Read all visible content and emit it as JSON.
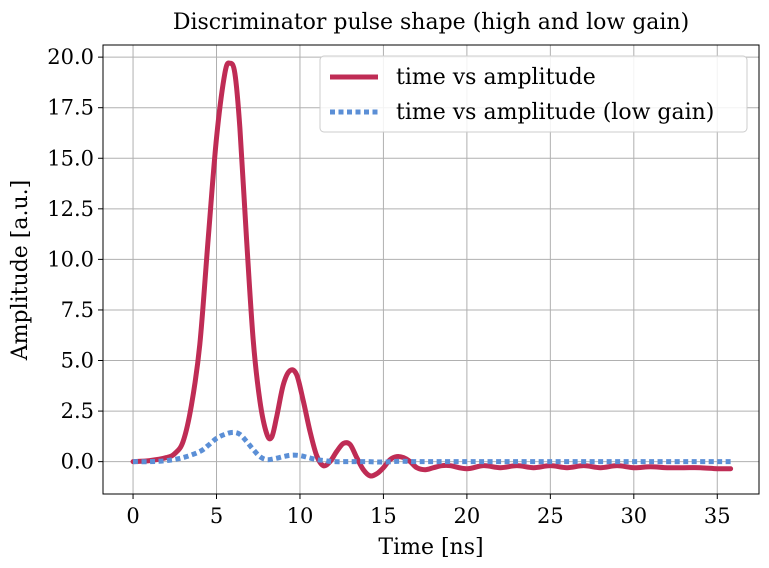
{
  "chart_data": {
    "type": "line",
    "title": "Discriminator pulse shape (high and low gain)",
    "xlabel": "Time [ns]",
    "ylabel": "Amplitude [a.u.]",
    "xlim": [
      -1.8,
      37.5
    ],
    "ylim": [
      -1.6,
      20.6
    ],
    "xticks": [
      0,
      5,
      10,
      15,
      20,
      25,
      30,
      35
    ],
    "xtick_labels": [
      "0",
      "5",
      "10",
      "15",
      "20",
      "25",
      "30",
      "35"
    ],
    "yticks": [
      0.0,
      2.5,
      5.0,
      7.5,
      10.0,
      12.5,
      15.0,
      17.5,
      20.0
    ],
    "ytick_labels": [
      "0.0",
      "2.5",
      "5.0",
      "7.5",
      "10.0",
      "12.5",
      "15.0",
      "17.5",
      "20.0"
    ],
    "grid": true,
    "legend_position": "top-right",
    "series": [
      {
        "name": "time vs amplitude",
        "color": "#bf2c55",
        "style": "solid",
        "x": [
          0,
          1,
          2,
          2.5,
          3,
          3.5,
          4,
          4.5,
          5,
          5.5,
          5.8,
          6.1,
          6.4,
          6.8,
          7.2,
          7.6,
          8.0,
          8.3,
          8.6,
          9.0,
          9.4,
          9.8,
          10.2,
          10.6,
          11.0,
          11.4,
          11.8,
          12.2,
          12.6,
          13.0,
          13.4,
          13.8,
          14.2,
          14.6,
          15.0,
          15.4,
          15.8,
          16.2,
          16.6,
          17.0,
          17.5,
          18.0,
          18.5,
          19.0,
          20.0,
          21.0,
          22.0,
          23.0,
          24.0,
          25.0,
          26.0,
          27.0,
          28.0,
          29.0,
          30.0,
          31.0,
          32.0,
          33.0,
          34.0,
          35.0,
          35.8
        ],
        "y": [
          0.0,
          0.05,
          0.2,
          0.4,
          1.0,
          2.8,
          5.8,
          11.0,
          16.0,
          19.2,
          19.7,
          19.2,
          16.5,
          11.0,
          6.0,
          3.0,
          1.4,
          1.2,
          2.2,
          3.8,
          4.5,
          4.3,
          3.0,
          1.5,
          0.3,
          -0.2,
          0.0,
          0.5,
          0.9,
          0.85,
          0.2,
          -0.4,
          -0.7,
          -0.6,
          -0.3,
          0.1,
          0.25,
          0.2,
          0.0,
          -0.3,
          -0.4,
          -0.3,
          -0.2,
          -0.2,
          -0.35,
          -0.2,
          -0.3,
          -0.2,
          -0.3,
          -0.2,
          -0.3,
          -0.2,
          -0.3,
          -0.2,
          -0.3,
          -0.25,
          -0.3,
          -0.3,
          -0.3,
          -0.35,
          -0.35
        ]
      },
      {
        "name": "time vs amplitude (low gain)",
        "color": "#5b8fd6",
        "style": "dotted",
        "x": [
          0,
          1,
          2,
          3,
          4,
          4.5,
          5,
          5.5,
          6,
          6.4,
          6.8,
          7.2,
          7.6,
          8.0,
          8.5,
          9.0,
          9.5,
          10.0,
          10.5,
          11.0,
          11.5,
          12.0,
          13.0,
          14.0,
          15.0,
          16.0,
          17.0,
          18.0,
          20.0,
          22.0,
          25.0,
          28.0,
          31.0,
          34.0,
          35.8
        ],
        "y": [
          0.0,
          0.0,
          0.05,
          0.2,
          0.5,
          0.8,
          1.15,
          1.35,
          1.45,
          1.35,
          1.0,
          0.6,
          0.25,
          0.1,
          0.15,
          0.25,
          0.32,
          0.3,
          0.2,
          0.1,
          0.05,
          0.0,
          0.0,
          0.0,
          -0.02,
          0.02,
          0.0,
          0.0,
          0.0,
          0.0,
          0.0,
          0.0,
          0.0,
          0.0,
          0.0
        ]
      }
    ]
  }
}
